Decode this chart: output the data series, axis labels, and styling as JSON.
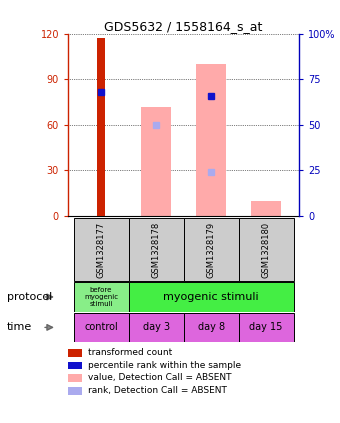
{
  "title": "GDS5632 / 1558164_s_at",
  "samples": [
    "GSM1328177",
    "GSM1328178",
    "GSM1328179",
    "GSM1328180"
  ],
  "bar_positions": [
    0,
    1,
    2,
    3
  ],
  "transformed_counts": [
    117,
    null,
    null,
    null
  ],
  "percentile_ranks_left": [
    68,
    null,
    66,
    null
  ],
  "absent_values_left": [
    null,
    72,
    100,
    10
  ],
  "absent_ranks_left": [
    null,
    60,
    29,
    null
  ],
  "ylim_left": [
    0,
    120
  ],
  "ylim_right": [
    0,
    100
  ],
  "yticks_left": [
    0,
    30,
    60,
    90,
    120
  ],
  "yticks_right": [
    0,
    25,
    50,
    75,
    100
  ],
  "ytick_labels_left": [
    "0",
    "30",
    "60",
    "90",
    "120"
  ],
  "ytick_labels_right": [
    "0",
    "25",
    "50",
    "75",
    "100%"
  ],
  "color_transformed": "#cc2200",
  "color_percentile": "#1111cc",
  "color_absent_value": "#ffaaaa",
  "color_absent_rank": "#aaaaee",
  "time_color": "#dd66dd",
  "sample_bg_color": "#cccccc",
  "protocol_color_before": "#88ee88",
  "protocol_color_after": "#44ee44",
  "legend_items": [
    {
      "color": "#cc2200",
      "label": "transformed count"
    },
    {
      "color": "#1111cc",
      "label": "percentile rank within the sample"
    },
    {
      "color": "#ffaaaa",
      "label": "value, Detection Call = ABSENT"
    },
    {
      "color": "#aaaaee",
      "label": "rank, Detection Call = ABSENT"
    }
  ]
}
